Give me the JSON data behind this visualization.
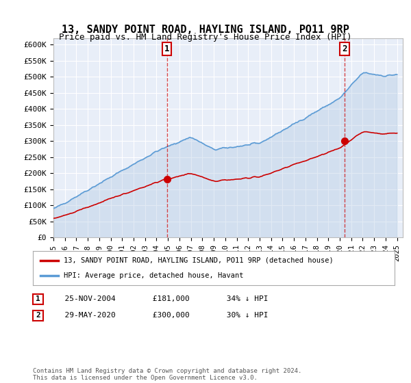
{
  "title": "13, SANDY POINT ROAD, HAYLING ISLAND, PO11 9RP",
  "subtitle": "Price paid vs. HM Land Registry's House Price Index (HPI)",
  "ylabel_ticks": [
    "£0",
    "£50K",
    "£100K",
    "£150K",
    "£200K",
    "£250K",
    "£300K",
    "£350K",
    "£400K",
    "£450K",
    "£500K",
    "£550K",
    "£600K"
  ],
  "ytick_values": [
    0,
    50000,
    100000,
    150000,
    200000,
    250000,
    300000,
    350000,
    400000,
    450000,
    500000,
    550000,
    600000
  ],
  "ylim": [
    0,
    620000
  ],
  "xlim_start": 1995.0,
  "xlim_end": 2025.5,
  "sale1_year": 2004.9,
  "sale1_price": 181000,
  "sale1_label": "1",
  "sale2_year": 2020.4,
  "sale2_price": 300000,
  "sale2_label": "2",
  "hpi_color": "#aac4e0",
  "hpi_color_dark": "#5b9bd5",
  "sale_line_color": "#cc0000",
  "sale_marker_color": "#cc0000",
  "background_color": "#f0f4fa",
  "plot_bg": "#e8eef8",
  "legend_label_red": "13, SANDY POINT ROAD, HAYLING ISLAND, PO11 9RP (detached house)",
  "legend_label_blue": "HPI: Average price, detached house, Havant",
  "table_row1": [
    "1",
    "25-NOV-2004",
    "£181,000",
    "34% ↓ HPI"
  ],
  "table_row2": [
    "2",
    "29-MAY-2020",
    "£300,000",
    "30% ↓ HPI"
  ],
  "footer": "Contains HM Land Registry data © Crown copyright and database right 2024.\nThis data is licensed under the Open Government Licence v3.0.",
  "x_ticks": [
    1995,
    1996,
    1997,
    1998,
    1999,
    2000,
    2001,
    2002,
    2003,
    2004,
    2005,
    2006,
    2007,
    2008,
    2009,
    2010,
    2011,
    2012,
    2013,
    2014,
    2015,
    2016,
    2017,
    2018,
    2019,
    2020,
    2021,
    2022,
    2023,
    2024,
    2025
  ]
}
